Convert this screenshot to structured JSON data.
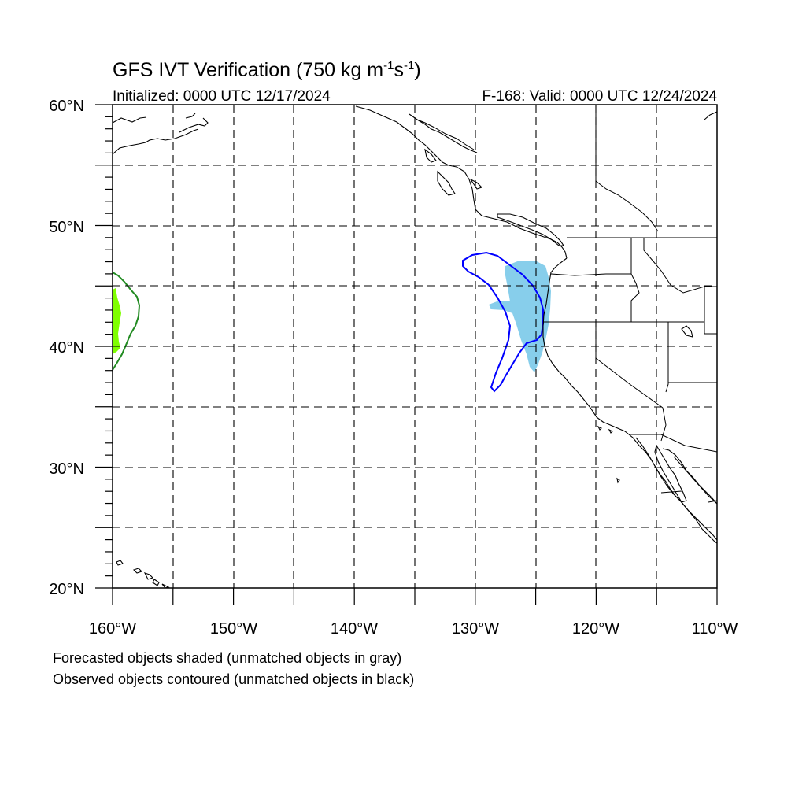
{
  "title": {
    "main": "GFS IVT Verification (750 kg m",
    "exp1": "-1",
    "mid": "s",
    "exp2": "-1",
    "close": ")"
  },
  "initialized": "Initialized: 0000 UTC 12/17/2024",
  "valid": "F-168: Valid: 0000 UTC 12/24/2024",
  "map": {
    "lon_range": [
      -160,
      -110
    ],
    "lat_range": [
      20,
      60
    ],
    "projection": "cylindrical equidistant",
    "grid": "dashed every 5 degrees",
    "lat_labels": [
      "20°N",
      "30°N",
      "40°N",
      "50°N",
      "60°N"
    ],
    "lon_labels": [
      "160°W",
      "150°W",
      "140°W",
      "130°W",
      "120°W",
      "110°W"
    ]
  },
  "objects": [
    {
      "kind": "forecast-shaded",
      "color": "#87ceeb",
      "matched": true,
      "region": "off Oregon / northern California coast"
    },
    {
      "kind": "observed-contour",
      "color": "#0000ff",
      "matched": true,
      "region": "off Oregon / northern California coast"
    },
    {
      "kind": "forecast-shaded",
      "color": "#7fff00",
      "matched": true,
      "region": "western edge near 160°W, 40–45°N"
    },
    {
      "kind": "observed-contour",
      "color": "#228b22",
      "matched": true,
      "region": "western edge near 160°W, 38–46°N"
    }
  ],
  "legend": {
    "line1": "Forecasted objects shaded (unmatched objects in gray)",
    "line2": "Observed objects contoured (unmatched objects in black)"
  }
}
